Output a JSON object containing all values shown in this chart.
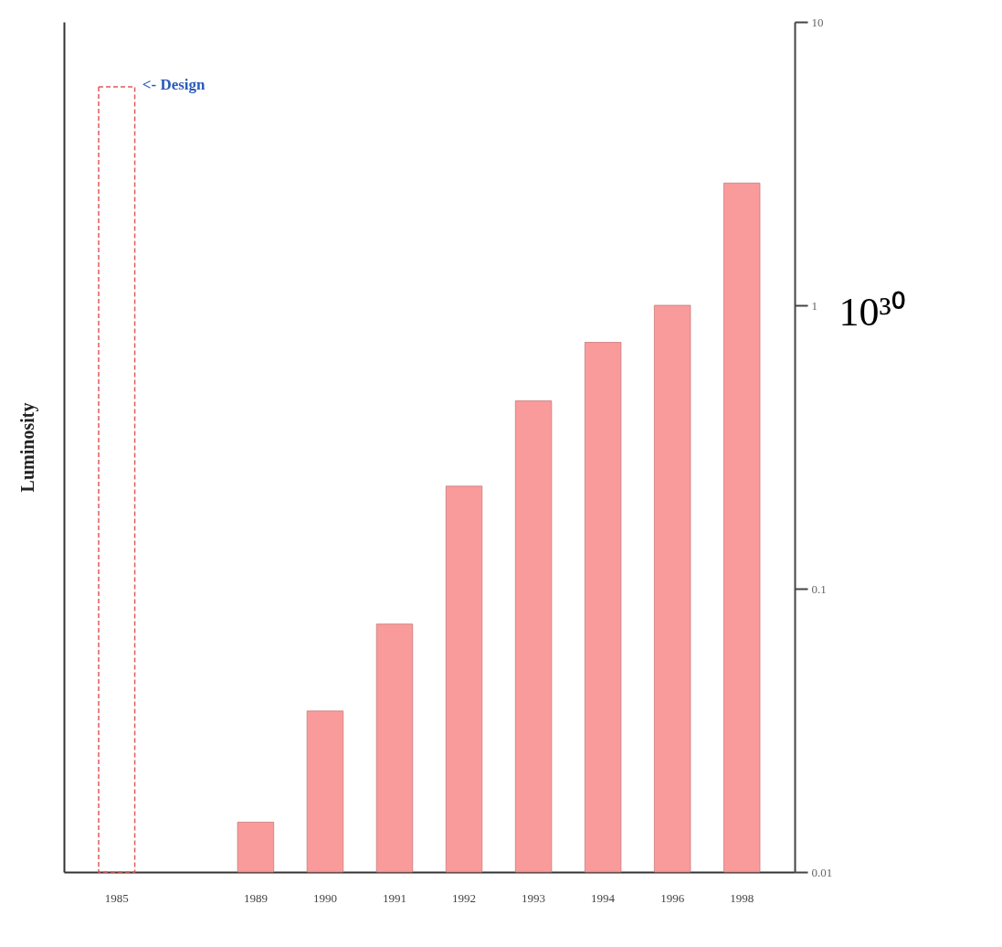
{
  "chart_data": {
    "type": "bar",
    "ylabel": "Luminosity",
    "categories": [
      "1985",
      null,
      "1989",
      "1990",
      "1991",
      "1992",
      "1993",
      "1994",
      "1996",
      "1998"
    ],
    "series": [
      {
        "color": "#e05a5a",
        "line_style": "dashed",
        "values": [
          5.9,
          null,
          null,
          null,
          null,
          null,
          null,
          null,
          null,
          null
        ]
      },
      {
        "color": "#f99b9b",
        "values": [
          null,
          null,
          0.015,
          0.037,
          0.075,
          0.23,
          0.46,
          0.74,
          1.0,
          2.7
        ]
      }
    ],
    "ylim": [
      0.01,
      10
    ],
    "yticks": [
      0.01,
      0.1,
      1,
      10
    ],
    "log": true,
    "grid": false,
    "annotations": [
      "10³⁰",
      {
        "text": "<- Design",
        "x": "1985",
        "y": 5.9
      }
    ]
  }
}
